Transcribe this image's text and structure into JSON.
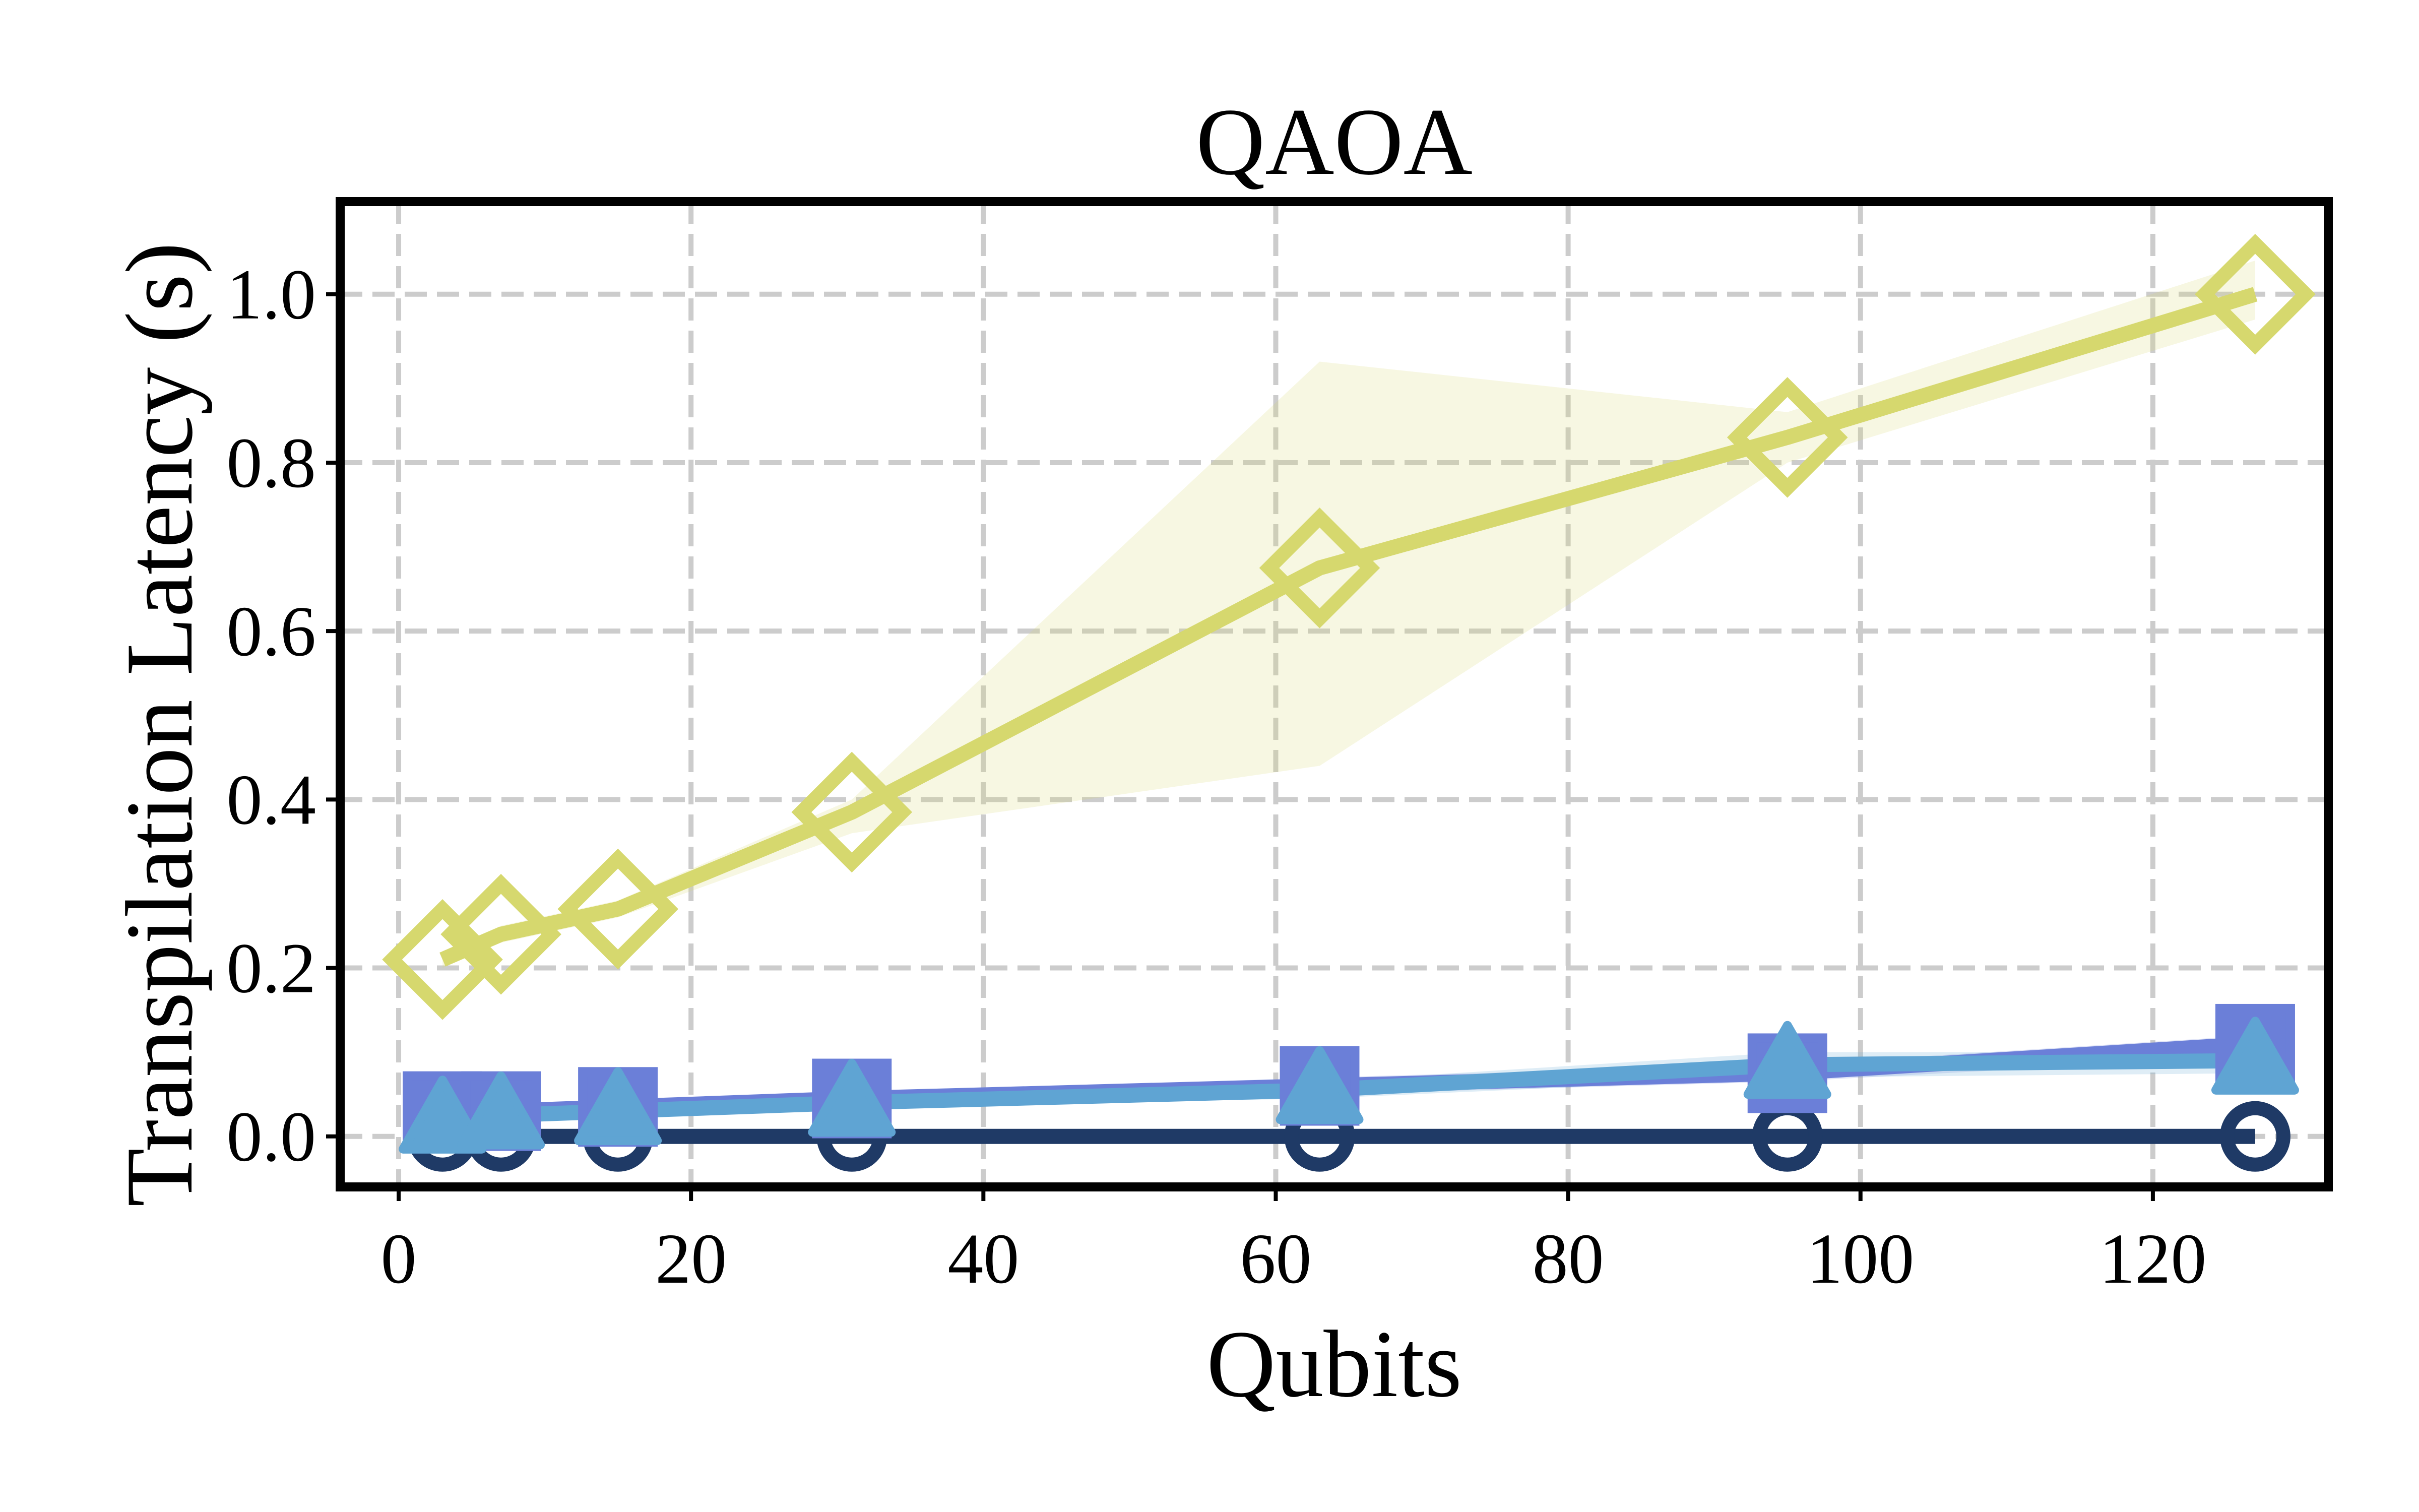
{
  "chart_data": {
    "type": "line",
    "title": "QAOA",
    "xlabel": "Qubits",
    "ylabel": "Transpilation Latency (s)",
    "xlim": [
      -4,
      132
    ],
    "ylim": [
      -0.06,
      1.11
    ],
    "xticks": [
      0,
      20,
      40,
      60,
      80,
      100,
      120
    ],
    "yticks": [
      0.0,
      0.2,
      0.4,
      0.6,
      0.8,
      1.0
    ],
    "xtick_labels": [
      "0",
      "20",
      "40",
      "60",
      "80",
      "100",
      "120"
    ],
    "ytick_labels": [
      "0.0",
      "0.2",
      "0.4",
      "0.6",
      "0.8",
      "1.0"
    ],
    "grid": true,
    "x": [
      3,
      7,
      15,
      31,
      63,
      95,
      127
    ],
    "series": [
      {
        "marker": "diamond",
        "color": "#d6d86e",
        "values": [
          0.21,
          0.24,
          0.27,
          0.385,
          0.675,
          0.83,
          1.0
        ],
        "band_low": [
          0.2,
          0.23,
          0.26,
          0.36,
          0.44,
          0.8,
          0.97
        ],
        "band_high": [
          0.22,
          0.25,
          0.28,
          0.4,
          0.92,
          0.86,
          1.04
        ]
      },
      {
        "marker": "square",
        "color": "#6b7fd8",
        "values": [
          0.03,
          0.03,
          0.035,
          0.045,
          0.06,
          0.075,
          0.11
        ],
        "band_low": [
          0.025,
          0.025,
          0.03,
          0.04,
          0.05,
          0.065,
          0.095
        ],
        "band_high": [
          0.035,
          0.035,
          0.04,
          0.05,
          0.07,
          0.085,
          0.12
        ]
      },
      {
        "marker": "triangle",
        "color": "#5fa4d3",
        "values": [
          0.02,
          0.025,
          0.03,
          0.04,
          0.055,
          0.085,
          0.09
        ],
        "band_low": [
          0.015,
          0.02,
          0.025,
          0.035,
          0.045,
          0.07,
          0.075
        ],
        "band_high": [
          0.025,
          0.03,
          0.035,
          0.045,
          0.065,
          0.1,
          0.1
        ]
      },
      {
        "marker": "circle",
        "color": "#1f3a66",
        "values": [
          0.0,
          0.0,
          0.0,
          0.0,
          0.0,
          0.0,
          0.0
        ]
      }
    ]
  }
}
